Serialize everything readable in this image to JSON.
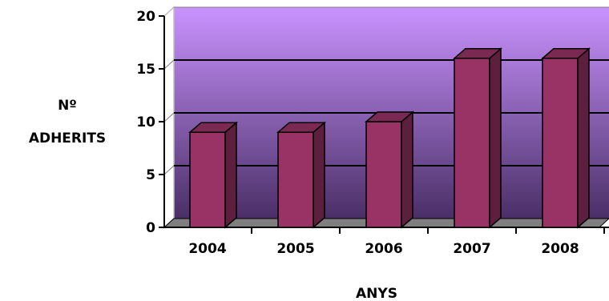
{
  "chart_data": {
    "type": "bar",
    "three_d": true,
    "categories": [
      "2004",
      "2005",
      "2006",
      "2007",
      "2008"
    ],
    "values": [
      9,
      9,
      10,
      16,
      16
    ],
    "ylim": [
      0,
      20
    ],
    "yticks": [
      "0",
      "5",
      "10",
      "15",
      "20"
    ],
    "ylabel_lines": [
      "Nº",
      "ADHERITS"
    ],
    "xlabel": "ANYS",
    "grid": true,
    "legend": "none",
    "colors": {
      "bar_front": "#993366",
      "bar_side": "#5c1f3d",
      "bar_top": "#7a2952",
      "bar_outline": "#000000",
      "wall_top": "#c993ff",
      "wall_bottom": "#4a2f66",
      "floor": "#7f7f7f",
      "gridline": "#000000"
    }
  }
}
